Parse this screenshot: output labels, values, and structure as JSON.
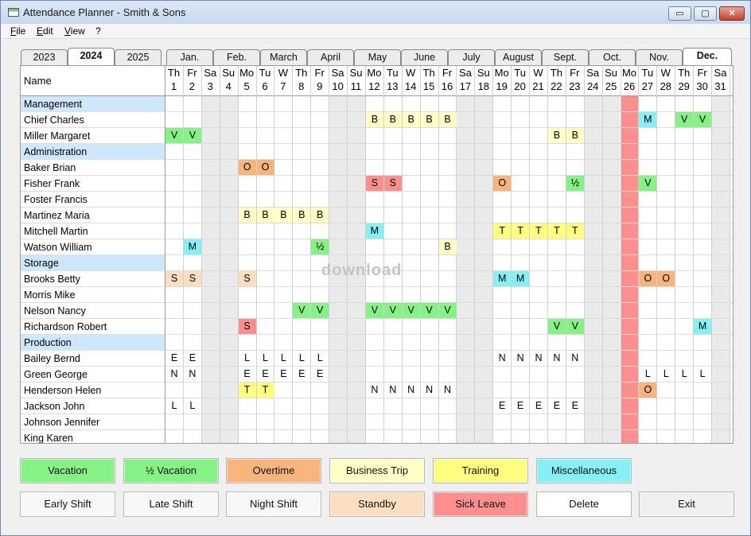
{
  "window": {
    "title": "Attendance Planner - Smith & Sons",
    "minimize": "▭",
    "maximize": "▢",
    "close": "✕"
  },
  "menu": [
    "File",
    "Edit",
    "View",
    "?"
  ],
  "year_tabs": [
    {
      "label": "2023"
    },
    {
      "label": "2024",
      "selected": true
    },
    {
      "label": "2025"
    }
  ],
  "month_tabs": [
    {
      "label": "Jan."
    },
    {
      "label": "Feb."
    },
    {
      "label": "March"
    },
    {
      "label": "April"
    },
    {
      "label": "May"
    },
    {
      "label": "June"
    },
    {
      "label": "July"
    },
    {
      "label": "August"
    },
    {
      "label": "Sept."
    },
    {
      "label": "Oct."
    },
    {
      "label": "Nov."
    },
    {
      "label": "Dec.",
      "selected": true
    }
  ],
  "grid": {
    "name_header": "Name",
    "days": [
      [
        "Th",
        "1"
      ],
      [
        "Fr",
        "2"
      ],
      [
        "Sa",
        "3"
      ],
      [
        "Su",
        "4"
      ],
      [
        "Mo",
        "5"
      ],
      [
        "Tu",
        "6"
      ],
      [
        "W",
        "7"
      ],
      [
        "Th",
        "8"
      ],
      [
        "Fr",
        "9"
      ],
      [
        "Sa",
        "10"
      ],
      [
        "Su",
        "11"
      ],
      [
        "Mo",
        "12"
      ],
      [
        "Tu",
        "13"
      ],
      [
        "W",
        "14"
      ],
      [
        "Th",
        "15"
      ],
      [
        "Fr",
        "16"
      ],
      [
        "Sa",
        "17"
      ],
      [
        "Su",
        "18"
      ],
      [
        "Mo",
        "19"
      ],
      [
        "Tu",
        "20"
      ],
      [
        "W",
        "21"
      ],
      [
        "Th",
        "22"
      ],
      [
        "Fr",
        "23"
      ],
      [
        "Sa",
        "24"
      ],
      [
        "Su",
        "25"
      ],
      [
        "Mo",
        "26"
      ],
      [
        "Tu",
        "27"
      ],
      [
        "W",
        "28"
      ],
      [
        "Th",
        "29"
      ],
      [
        "Fr",
        "30"
      ],
      [
        "Sa",
        "31"
      ]
    ],
    "weekend_days": [
      3,
      4,
      10,
      11,
      17,
      18,
      24,
      25,
      31
    ],
    "highlight_day": 26,
    "rows": [
      {
        "name": "Management",
        "group": true
      },
      {
        "name": "Chief Charles",
        "cells": [
          [
            12,
            "B"
          ],
          [
            13,
            "B"
          ],
          [
            14,
            "B"
          ],
          [
            15,
            "B"
          ],
          [
            16,
            "B"
          ],
          [
            27,
            "M"
          ],
          [
            29,
            "V"
          ],
          [
            30,
            "V"
          ]
        ]
      },
      {
        "name": "Miller Margaret",
        "cells": [
          [
            1,
            "V"
          ],
          [
            2,
            "V"
          ],
          [
            22,
            "B"
          ],
          [
            23,
            "B"
          ]
        ]
      },
      {
        "name": "Administration",
        "group": true
      },
      {
        "name": "Baker Brian",
        "cells": [
          [
            5,
            "O"
          ],
          [
            6,
            "O"
          ]
        ]
      },
      {
        "name": "Fisher Frank",
        "cells": [
          [
            12,
            "S"
          ],
          [
            13,
            "S"
          ],
          [
            19,
            "O"
          ],
          [
            23,
            "½"
          ],
          [
            27,
            "V"
          ]
        ]
      },
      {
        "name": "Foster Francis",
        "cells": []
      },
      {
        "name": "Martinez Maria",
        "cells": [
          [
            5,
            "B"
          ],
          [
            6,
            "B"
          ],
          [
            7,
            "B"
          ],
          [
            8,
            "B"
          ],
          [
            9,
            "B"
          ]
        ]
      },
      {
        "name": "Mitchell Martin",
        "cells": [
          [
            12,
            "M"
          ],
          [
            19,
            "T"
          ],
          [
            20,
            "T"
          ],
          [
            21,
            "T"
          ],
          [
            22,
            "T"
          ],
          [
            23,
            "T"
          ]
        ]
      },
      {
        "name": "Watson William",
        "cells": [
          [
            2,
            "M"
          ],
          [
            9,
            "½"
          ],
          [
            16,
            "B"
          ]
        ]
      },
      {
        "name": "Storage",
        "group": true
      },
      {
        "name": "Brooks Betty",
        "cells": [
          [
            1,
            "S",
            "standby"
          ],
          [
            2,
            "S",
            "standby"
          ],
          [
            5,
            "S",
            "standby"
          ],
          [
            19,
            "M"
          ],
          [
            20,
            "M"
          ],
          [
            27,
            "O"
          ],
          [
            28,
            "O"
          ]
        ]
      },
      {
        "name": "Morris Mike",
        "cells": []
      },
      {
        "name": "Nelson Nancy",
        "cells": [
          [
            8,
            "V"
          ],
          [
            9,
            "V"
          ],
          [
            12,
            "V"
          ],
          [
            13,
            "V"
          ],
          [
            14,
            "V"
          ],
          [
            15,
            "V"
          ],
          [
            16,
            "V"
          ]
        ]
      },
      {
        "name": "Richardson Robert",
        "cells": [
          [
            5,
            "S"
          ],
          [
            22,
            "V"
          ],
          [
            23,
            "V"
          ],
          [
            30,
            "M"
          ]
        ]
      },
      {
        "name": "Production",
        "group": true
      },
      {
        "name": "Bailey Bernd",
        "cells": [
          [
            1,
            "E"
          ],
          [
            2,
            "E"
          ],
          [
            5,
            "L"
          ],
          [
            6,
            "L"
          ],
          [
            7,
            "L"
          ],
          [
            8,
            "L"
          ],
          [
            9,
            "L"
          ],
          [
            19,
            "N"
          ],
          [
            20,
            "N"
          ],
          [
            21,
            "N"
          ],
          [
            22,
            "N"
          ],
          [
            23,
            "N"
          ]
        ]
      },
      {
        "name": "Green George",
        "cells": [
          [
            1,
            "N"
          ],
          [
            2,
            "N"
          ],
          [
            5,
            "E"
          ],
          [
            6,
            "E"
          ],
          [
            7,
            "E"
          ],
          [
            8,
            "E"
          ],
          [
            9,
            "E"
          ],
          [
            27,
            "L"
          ],
          [
            28,
            "L"
          ],
          [
            29,
            "L"
          ],
          [
            30,
            "L"
          ]
        ]
      },
      {
        "name": "Henderson Helen",
        "cells": [
          [
            5,
            "T"
          ],
          [
            6,
            "T"
          ],
          [
            12,
            "N"
          ],
          [
            13,
            "N"
          ],
          [
            14,
            "N"
          ],
          [
            15,
            "N"
          ],
          [
            16,
            "N"
          ],
          [
            27,
            "O"
          ]
        ]
      },
      {
        "name": "Jackson John",
        "cells": [
          [
            1,
            "L"
          ],
          [
            2,
            "L"
          ],
          [
            19,
            "E"
          ],
          [
            20,
            "E"
          ],
          [
            21,
            "E"
          ],
          [
            22,
            "E"
          ],
          [
            23,
            "E"
          ]
        ]
      },
      {
        "name": "Johnson Jennifer",
        "cells": []
      },
      {
        "name": "King Karen",
        "cells": []
      }
    ]
  },
  "codes": {
    "V": "#86f286",
    "½": "#86f286",
    "O": "#f7b47c",
    "B": "#ffffc6",
    "T": "#ffff80",
    "M": "#86f0f5",
    "S": "#ff8f8f",
    "standby": "#fcdfc0"
  },
  "legend_row1": [
    {
      "label": "Vacation",
      "color": "#86f286"
    },
    {
      "label": "½ Vacation",
      "color": "#86f286"
    },
    {
      "label": "Overtime",
      "color": "#f7b47c"
    },
    {
      "label": "Business Trip",
      "color": "#ffffc6"
    },
    {
      "label": "Training",
      "color": "#ffff80"
    },
    {
      "label": "Miscellaneous",
      "color": "#86f0f5"
    }
  ],
  "legend_row2": [
    {
      "label": "Early Shift",
      "color": "#f8f8f8"
    },
    {
      "label": "Late Shift",
      "color": "#f8f8f8"
    },
    {
      "label": "Night Shift",
      "color": "#f8f8f8"
    },
    {
      "label": "Standby",
      "color": "#fcdfc0"
    },
    {
      "label": "Sick Leave",
      "color": "#ff8f8f"
    },
    {
      "label": "Delete",
      "color": "#ffffff"
    },
    {
      "label": "Exit",
      "color": "#f0f0f0"
    }
  ]
}
